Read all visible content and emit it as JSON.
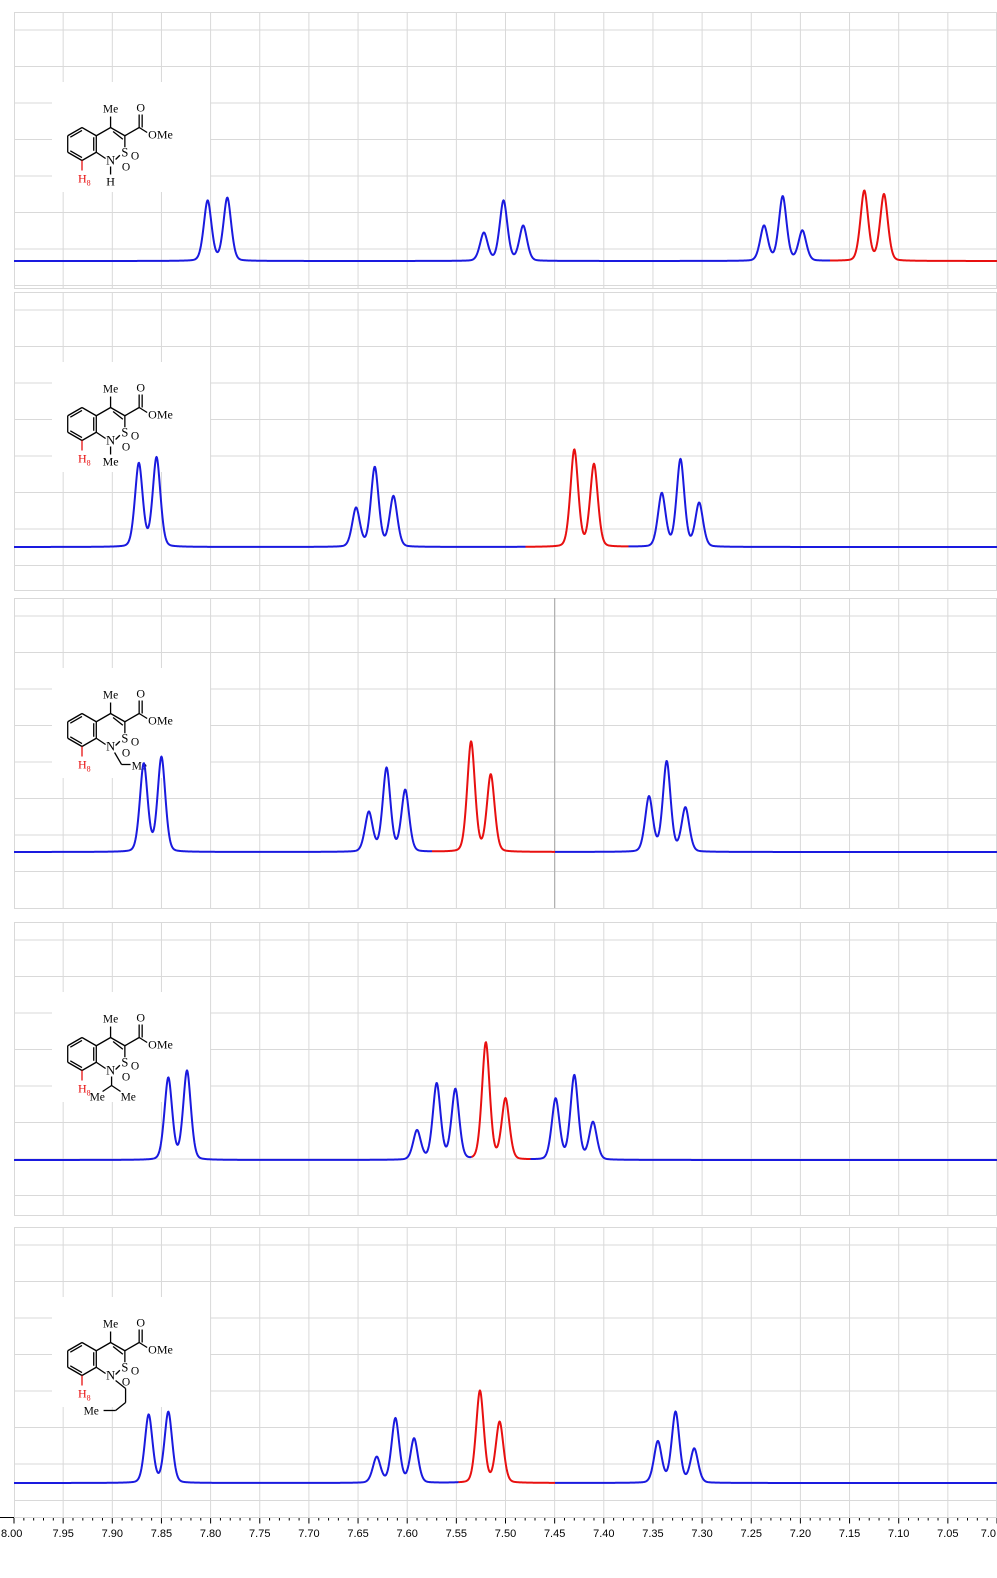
{
  "chart_data": {
    "type": "line",
    "xlabel": "",
    "ylabel": "",
    "x_range": [
      8.0,
      7.0
    ],
    "x_reversed": true,
    "grid": true,
    "x_ticks": [
      "8.00",
      "7.95",
      "7.90",
      "7.85",
      "7.80",
      "7.75",
      "7.70",
      "7.65",
      "7.60",
      "7.55",
      "7.50",
      "7.45",
      "7.40",
      "7.35",
      "7.30",
      "7.25",
      "7.20",
      "7.15",
      "7.10",
      "7.05",
      "7.0"
    ],
    "series_colors": {
      "regular": "#1a1adf",
      "highlight": "#e81010"
    },
    "panels": [
      {
        "structure_labels": {
          "me": "Me",
          "ester": "OMe",
          "n": "N",
          "s": "S",
          "o1": "O",
          "o2": "O",
          "o3": "O",
          "h8": "H",
          "h8_sub": "8",
          "substituent": [
            "H"
          ]
        },
        "substituent_kind": "H",
        "peaks": [
          {
            "x": 7.803,
            "h": 0.86
          },
          {
            "x": 7.783,
            "h": 0.9
          },
          {
            "x": 7.522,
            "h": 0.4
          },
          {
            "x": 7.502,
            "h": 0.86
          },
          {
            "x": 7.482,
            "h": 0.5
          },
          {
            "x": 7.237,
            "h": 0.5
          },
          {
            "x": 7.218,
            "h": 0.92
          },
          {
            "x": 7.198,
            "h": 0.43
          },
          {
            "x": 7.135,
            "h": 1.0,
            "highlight": true
          },
          {
            "x": 7.115,
            "h": 0.95,
            "highlight": true
          }
        ],
        "highlight_range": [
          7.17,
          7.0
        ]
      },
      {
        "structure_labels": {
          "me": "Me",
          "ester": "OMe",
          "n": "N",
          "s": "S",
          "o1": "O",
          "o2": "O",
          "o3": "O",
          "h8": "H",
          "h8_sub": "8",
          "substituent": [
            "Me"
          ]
        },
        "substituent_kind": "Me",
        "peaks": [
          {
            "x": 7.873,
            "h": 0.86
          },
          {
            "x": 7.855,
            "h": 0.92
          },
          {
            "x": 7.652,
            "h": 0.4
          },
          {
            "x": 7.633,
            "h": 0.82
          },
          {
            "x": 7.614,
            "h": 0.52
          },
          {
            "x": 7.43,
            "h": 1.0,
            "highlight": true
          },
          {
            "x": 7.41,
            "h": 0.85,
            "highlight": true
          },
          {
            "x": 7.341,
            "h": 0.55
          },
          {
            "x": 7.322,
            "h": 0.9
          },
          {
            "x": 7.303,
            "h": 0.45
          }
        ],
        "highlight_range": [
          7.48,
          7.375
        ]
      },
      {
        "structure_labels": {
          "me": "Me",
          "ester": "OMe",
          "n": "N",
          "s": "S",
          "o1": "O",
          "o2": "O",
          "o3": "O",
          "h8": "H",
          "h8_sub": "8",
          "substituent": [
            "Me"
          ]
        },
        "substituent_kind": "ethyl",
        "peaks": [
          {
            "x": 7.868,
            "h": 0.8
          },
          {
            "x": 7.85,
            "h": 0.86
          },
          {
            "x": 7.639,
            "h": 0.36
          },
          {
            "x": 7.621,
            "h": 0.76
          },
          {
            "x": 7.602,
            "h": 0.56
          },
          {
            "x": 7.535,
            "h": 1.0,
            "highlight": true
          },
          {
            "x": 7.515,
            "h": 0.7,
            "highlight": true
          },
          {
            "x": 7.354,
            "h": 0.5
          },
          {
            "x": 7.336,
            "h": 0.82
          },
          {
            "x": 7.317,
            "h": 0.4
          }
        ],
        "highlight_range": [
          7.575,
          7.45
        ],
        "cursor_x": 7.45
      },
      {
        "structure_labels": {
          "me": "Me",
          "ester": "OMe",
          "n": "N",
          "s": "S",
          "o1": "O",
          "o2": "O",
          "o3": "O",
          "h8": "H",
          "h8_sub": "8",
          "substituent": [
            "Me",
            "Me"
          ]
        },
        "substituent_kind": "isopropyl",
        "peaks": [
          {
            "x": 7.843,
            "h": 0.7
          },
          {
            "x": 7.824,
            "h": 0.76
          },
          {
            "x": 7.59,
            "h": 0.25
          },
          {
            "x": 7.57,
            "h": 0.65
          },
          {
            "x": 7.551,
            "h": 0.6
          },
          {
            "x": 7.52,
            "h": 1.0,
            "highlight": true
          },
          {
            "x": 7.5,
            "h": 0.52,
            "highlight": true
          },
          {
            "x": 7.449,
            "h": 0.52
          },
          {
            "x": 7.43,
            "h": 0.72
          },
          {
            "x": 7.411,
            "h": 0.32
          }
        ],
        "highlight_range": [
          7.535,
          7.475
        ]
      },
      {
        "structure_labels": {
          "me": "Me",
          "ester": "OMe",
          "n": "N",
          "s": "S",
          "o1": "O",
          "o2": "O",
          "o3": "O",
          "h8": "H",
          "h8_sub": "8",
          "substituent": [
            "Me"
          ]
        },
        "substituent_kind": "butyl",
        "peaks": [
          {
            "x": 7.863,
            "h": 0.74
          },
          {
            "x": 7.843,
            "h": 0.77
          },
          {
            "x": 7.631,
            "h": 0.28
          },
          {
            "x": 7.612,
            "h": 0.7
          },
          {
            "x": 7.593,
            "h": 0.48
          },
          {
            "x": 7.526,
            "h": 1.0,
            "highlight": true
          },
          {
            "x": 7.506,
            "h": 0.66,
            "highlight": true
          },
          {
            "x": 7.345,
            "h": 0.45
          },
          {
            "x": 7.327,
            "h": 0.77
          },
          {
            "x": 7.308,
            "h": 0.37
          }
        ],
        "highlight_range": [
          7.548,
          7.45
        ]
      }
    ]
  }
}
